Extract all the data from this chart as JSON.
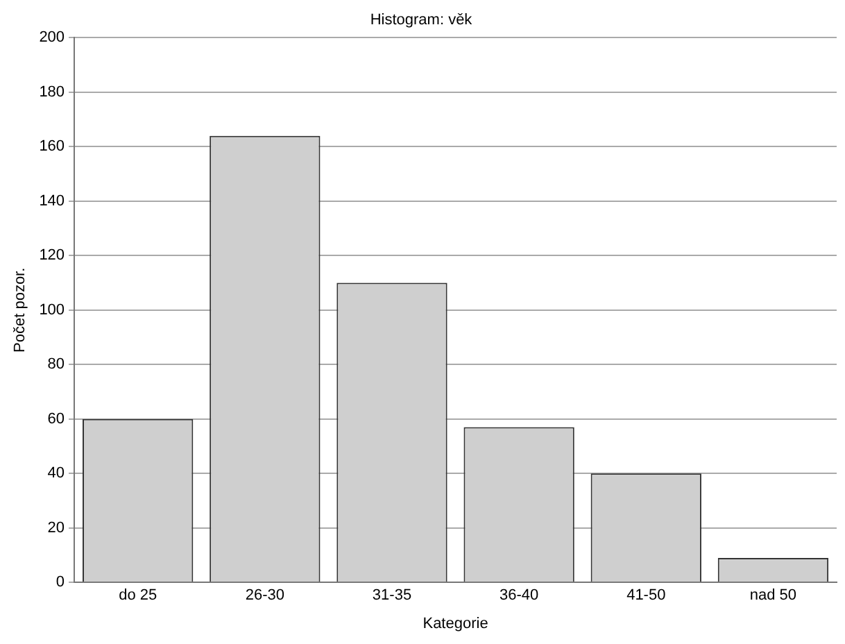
{
  "chart_data": {
    "type": "bar",
    "title": "Histogram: věk",
    "xlabel": "Kategorie",
    "ylabel": "Počet pozor.",
    "categories": [
      "do 25",
      "26-30",
      "31-35",
      "36-40",
      "41-50",
      "nad 50"
    ],
    "values": [
      60,
      164,
      110,
      57,
      40,
      9
    ],
    "color": "#cfcfcf",
    "ylim": [
      0,
      200
    ],
    "yticks": [
      0,
      20,
      40,
      60,
      80,
      100,
      120,
      140,
      160,
      180,
      200
    ],
    "grid": "y",
    "legend": false
  }
}
